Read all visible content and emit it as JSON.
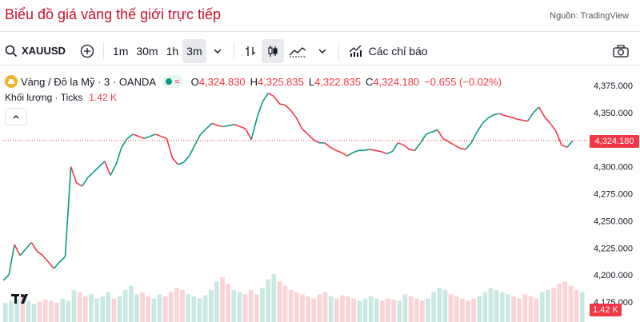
{
  "header": {
    "title": "Biểu đồ giá vàng thế giới trực tiếp",
    "source": "Nguồn: TradingView"
  },
  "toolbar": {
    "symbol": "XAUUSD",
    "intervals": [
      "1m",
      "30m",
      "1h",
      "3m"
    ],
    "active_interval": "3m",
    "indicators_label": "Các chỉ báo"
  },
  "legend": {
    "instrument": "Vàng / Đô la Mỹ · 3 · OANDA",
    "open_key": "O",
    "open": "4,324.830",
    "high_key": "H",
    "high": "4,325.835",
    "low_key": "L",
    "low": "4,322.835",
    "close_key": "C",
    "close": "4,324.180",
    "change": "−0.655 (−0.02%)",
    "volume_label": "Khối lượng · Ticks",
    "volume_value": "1.42 K"
  },
  "price_tag": "4,324.180",
  "volume_tag": "1.42 K",
  "colors": {
    "up": "#089981",
    "down": "#f23645",
    "accent": "#c8102e"
  },
  "chart_data": {
    "type": "line",
    "price_ticks": [
      "4,375.000",
      "4,350.000",
      "4,325.000",
      "4,300.000",
      "4,275.000",
      "4,250.000",
      "4,225.000",
      "4,200.000",
      "4,175.000"
    ],
    "ylim": [
      4165,
      4385
    ],
    "last_price": 4324.18,
    "series": [
      {
        "values": [
          4195,
          4200,
          4228,
          4218,
          4224,
          4230,
          4222,
          4218,
          4212,
          4206,
          4212,
          4217,
          4300,
          4285,
          4282,
          4290,
          4295,
          4300,
          4305,
          4292,
          4302,
          4318,
          4326,
          4330,
          4328,
          4326,
          4328,
          4330,
          4328,
          4326,
          4308,
          4302,
          4304,
          4310,
          4320,
          4330,
          4335,
          4340,
          4338,
          4337,
          4338,
          4339,
          4337,
          4335,
          4325,
          4345,
          4360,
          4368,
          4365,
          4358,
          4357,
          4352,
          4345,
          4335,
          4330,
          4325,
          4322,
          4322,
          4318,
          4315,
          4313,
          4310,
          4313,
          4315,
          4315,
          4316,
          4315,
          4314,
          4312,
          4314,
          4322,
          4320,
          4316,
          4315,
          4322,
          4330,
          4332,
          4334,
          4326,
          4323,
          4320,
          4317,
          4316,
          4322,
          4332,
          4340,
          4345,
          4348,
          4349,
          4347,
          4346,
          4344,
          4343,
          4342,
          4350,
          4355,
          4346,
          4340,
          4333,
          4320,
          4318,
          4324
        ]
      }
    ],
    "volume": [
      18,
      20,
      22,
      25,
      20,
      17,
      19,
      21,
      20,
      18,
      22,
      20,
      30,
      28,
      24,
      26,
      22,
      24,
      28,
      22,
      24,
      30,
      34,
      26,
      28,
      24,
      22,
      26,
      24,
      28,
      32,
      30,
      26,
      24,
      22,
      25,
      30,
      38,
      42,
      36,
      30,
      28,
      26,
      30,
      26,
      32,
      40,
      45,
      38,
      34,
      30,
      28,
      26,
      24,
      22,
      26,
      28,
      24,
      22,
      25,
      24,
      22,
      20,
      22,
      24,
      22,
      20,
      22,
      21,
      20,
      26,
      24,
      22,
      20,
      22,
      28,
      32,
      30,
      26,
      24,
      22,
      20,
      22,
      24,
      28,
      32,
      30,
      28,
      26,
      24,
      22,
      26,
      24,
      22,
      28,
      30,
      32,
      36,
      38,
      34,
      30,
      28
    ]
  }
}
